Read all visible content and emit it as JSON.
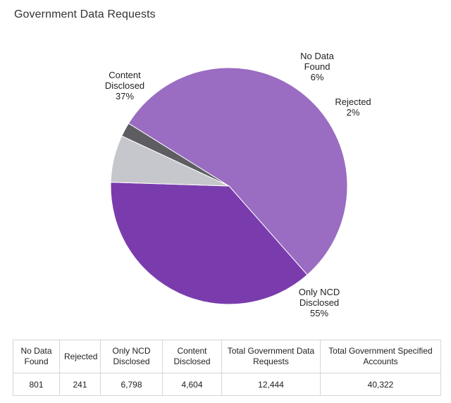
{
  "title": "Government Data Requests",
  "chart_data": {
    "type": "pie",
    "title": "Government Data Requests",
    "slices": [
      {
        "name": "Rejected",
        "label_lines": [
          "Rejected"
        ],
        "pct_label": "2%",
        "value": 241,
        "color": "#5e5e62"
      },
      {
        "name": "Only NCD Disclosed",
        "label_lines": [
          "Only NCD",
          "Disclosed"
        ],
        "pct_label": "55%",
        "value": 6798,
        "color": "#9a6cc2"
      },
      {
        "name": "Content Disclosed",
        "label_lines": [
          "Content",
          "Disclosed"
        ],
        "pct_label": "37%",
        "value": 4604,
        "color": "#7a3cad"
      },
      {
        "name": "No Data Found",
        "label_lines": [
          "No Data",
          "Found"
        ],
        "pct_label": "6%",
        "value": 801,
        "color": "#c6c7cc"
      }
    ],
    "legend": "none"
  },
  "table": {
    "headers": [
      "No Data\nFound",
      "Rejected",
      "Only NCD\nDisclosed",
      "Content\nDisclosed",
      "Total Government Data\nRequests",
      "Total Government Specified\nAccounts"
    ],
    "values": [
      "801",
      "241",
      "6,798",
      "4,604",
      "12,444",
      "40,322"
    ]
  }
}
